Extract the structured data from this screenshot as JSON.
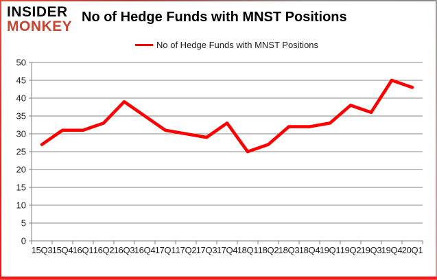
{
  "header": {
    "logo_line1": "INSIDER",
    "logo_line2": "MONKEY",
    "title": "No of Hedge Funds with MNST Positions"
  },
  "legend": {
    "label": "No of Hedge Funds with MNST Positions"
  },
  "colors": {
    "line": "#ff0000",
    "gridline": "#868686",
    "axis": "#808080",
    "tick_text": "#1a1a1a",
    "logo_black": "#0d0d0d",
    "logo_red": "#c84431",
    "border_red": "#ff0f0f"
  },
  "chart_data": {
    "type": "line",
    "title": "No of Hedge Funds with MNST Positions",
    "categories": [
      "15Q3",
      "15Q4",
      "16Q1",
      "16Q2",
      "16Q3",
      "16Q4",
      "17Q1",
      "17Q2",
      "17Q3",
      "17Q4",
      "18Q1",
      "18Q2",
      "18Q3",
      "18Q4",
      "19Q1",
      "19Q2",
      "19Q3",
      "19Q4",
      "20Q1"
    ],
    "series": [
      {
        "name": "No of Hedge Funds with MNST Positions",
        "values": [
          27,
          31,
          31,
          33,
          39,
          35,
          31,
          30,
          29,
          33,
          25,
          27,
          32,
          32,
          33,
          38,
          36,
          45,
          43
        ]
      }
    ],
    "xlabel": "",
    "ylabel": "",
    "ylim": [
      0,
      50
    ],
    "ytick_step": 5,
    "grid": true,
    "legend_position": "top"
  }
}
